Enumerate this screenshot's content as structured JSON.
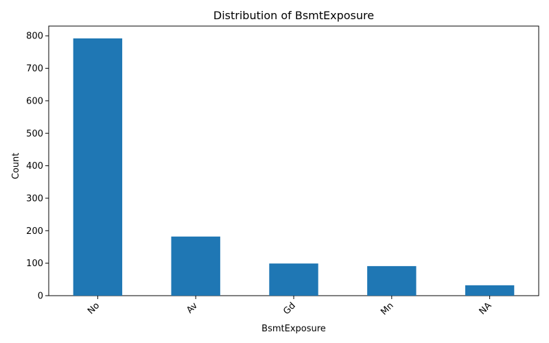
{
  "chart_data": {
    "type": "bar",
    "title": "Distribution of BsmtExposure",
    "xlabel": "BsmtExposure",
    "ylabel": "Count",
    "categories": [
      "No",
      "Av",
      "Gd",
      "Mn",
      "NA"
    ],
    "values": [
      792,
      182,
      99,
      91,
      32
    ],
    "ylim": [
      0,
      830
    ],
    "yticks": [
      0,
      100,
      200,
      300,
      400,
      500,
      600,
      700,
      800
    ],
    "bar_color": "#1f77b4",
    "grid": false,
    "legend": "none"
  }
}
